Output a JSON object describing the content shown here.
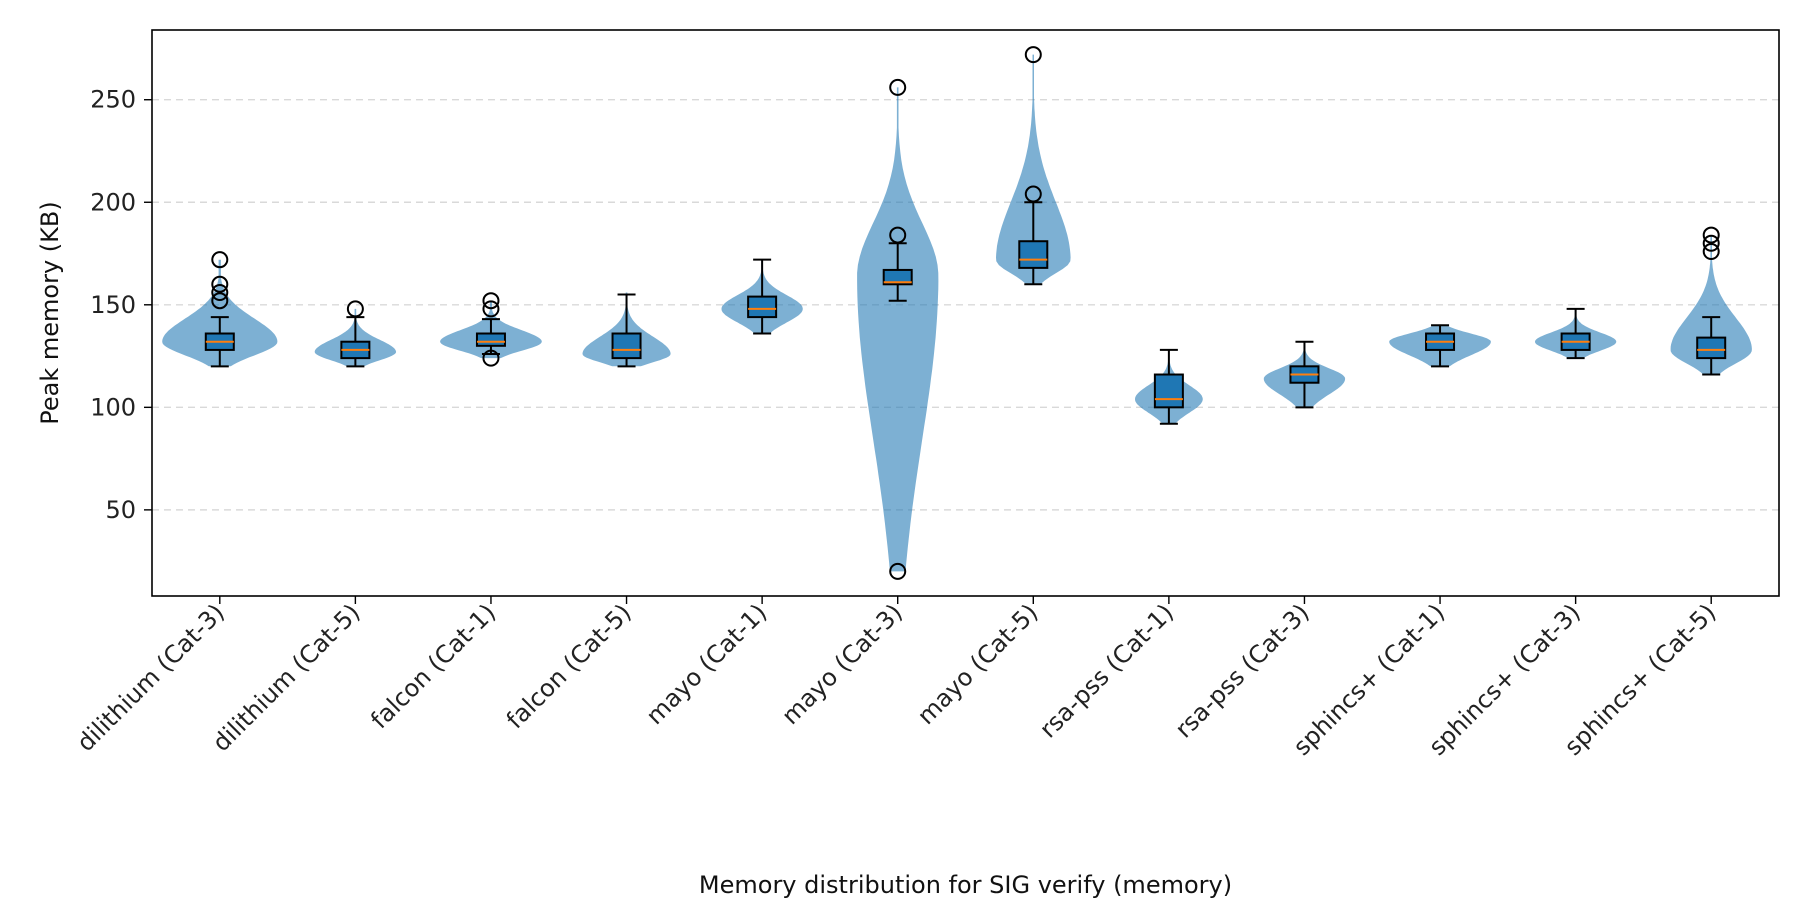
{
  "chart_data": {
    "type": "violin",
    "xlabel": "Memory distribution for SIG verify (memory)",
    "ylabel": "Peak memory (KB)",
    "ylim": [
      8,
      284
    ],
    "yticks": [
      50,
      100,
      150,
      200,
      250
    ],
    "grid": "y-dashed",
    "colors": {
      "violin": "#1f77b4",
      "box": "#1f77b4",
      "median": "#ff7f0e",
      "outline": "#000000",
      "grid": "#d9d9d9"
    },
    "categories": [
      {
        "label": "dilithium (Cat-3)",
        "q1": 128,
        "median": 132,
        "q3": 136,
        "whisker_low": 120,
        "whisker_high": 144,
        "outliers": [
          172,
          160,
          156,
          152
        ],
        "violin": {
          "min": 120,
          "max": 172,
          "mode": 132,
          "width": 0.85
        }
      },
      {
        "label": "dilithium (Cat-5)",
        "q1": 124,
        "median": 128,
        "q3": 132,
        "whisker_low": 120,
        "whisker_high": 144,
        "outliers": [
          148
        ],
        "violin": {
          "min": 120,
          "max": 148,
          "mode": 127,
          "width": 0.6
        }
      },
      {
        "label": "falcon (Cat-1)",
        "q1": 130,
        "median": 132,
        "q3": 136,
        "whisker_low": 126,
        "whisker_high": 143,
        "outliers": [
          152,
          148,
          124
        ],
        "violin": {
          "min": 124,
          "max": 152,
          "mode": 132,
          "width": 0.75
        }
      },
      {
        "label": "falcon (Cat-5)",
        "q1": 124,
        "median": 128,
        "q3": 136,
        "whisker_low": 120,
        "whisker_high": 155,
        "outliers": [],
        "violin": {
          "min": 120,
          "max": 156,
          "mode": 126,
          "width": 0.65
        }
      },
      {
        "label": "mayo (Cat-1)",
        "q1": 144,
        "median": 148,
        "q3": 154,
        "whisker_low": 136,
        "whisker_high": 172,
        "outliers": [],
        "violin": {
          "min": 136,
          "max": 172,
          "mode": 148,
          "width": 0.6
        }
      },
      {
        "label": "mayo (Cat-3)",
        "q1": 160,
        "median": 161,
        "q3": 167,
        "whisker_low": 152,
        "whisker_high": 180,
        "outliers": [
          256,
          184,
          20
        ],
        "violin": {
          "min": 20,
          "max": 256,
          "mode": 164,
          "width": 0.6
        }
      },
      {
        "label": "mayo (Cat-5)",
        "q1": 168,
        "median": 172,
        "q3": 181,
        "whisker_low": 160,
        "whisker_high": 200,
        "outliers": [
          272,
          204
        ],
        "violin": {
          "min": 160,
          "max": 272,
          "mode": 172,
          "width": 0.55
        }
      },
      {
        "label": "rsa-pss (Cat-1)",
        "q1": 100,
        "median": 104,
        "q3": 116,
        "whisker_low": 92,
        "whisker_high": 128,
        "outliers": [],
        "violin": {
          "min": 92,
          "max": 128,
          "mode": 104,
          "width": 0.5
        }
      },
      {
        "label": "rsa-pss (Cat-3)",
        "q1": 112,
        "median": 116,
        "q3": 120,
        "whisker_low": 100,
        "whisker_high": 132,
        "outliers": [],
        "violin": {
          "min": 100,
          "max": 132,
          "mode": 114,
          "width": 0.6
        }
      },
      {
        "label": "sphincs+ (Cat-1)",
        "q1": 128,
        "median": 132,
        "q3": 136,
        "whisker_low": 120,
        "whisker_high": 140,
        "outliers": [],
        "violin": {
          "min": 120,
          "max": 140,
          "mode": 132,
          "width": 0.75
        }
      },
      {
        "label": "sphincs+ (Cat-3)",
        "q1": 128,
        "median": 132,
        "q3": 136,
        "whisker_low": 124,
        "whisker_high": 148,
        "outliers": [],
        "violin": {
          "min": 124,
          "max": 148,
          "mode": 132,
          "width": 0.6
        }
      },
      {
        "label": "sphincs+ (Cat-5)",
        "q1": 124,
        "median": 128,
        "q3": 134,
        "whisker_low": 116,
        "whisker_high": 144,
        "outliers": [
          184,
          180,
          176
        ],
        "violin": {
          "min": 116,
          "max": 184,
          "mode": 128,
          "width": 0.6
        }
      }
    ]
  }
}
